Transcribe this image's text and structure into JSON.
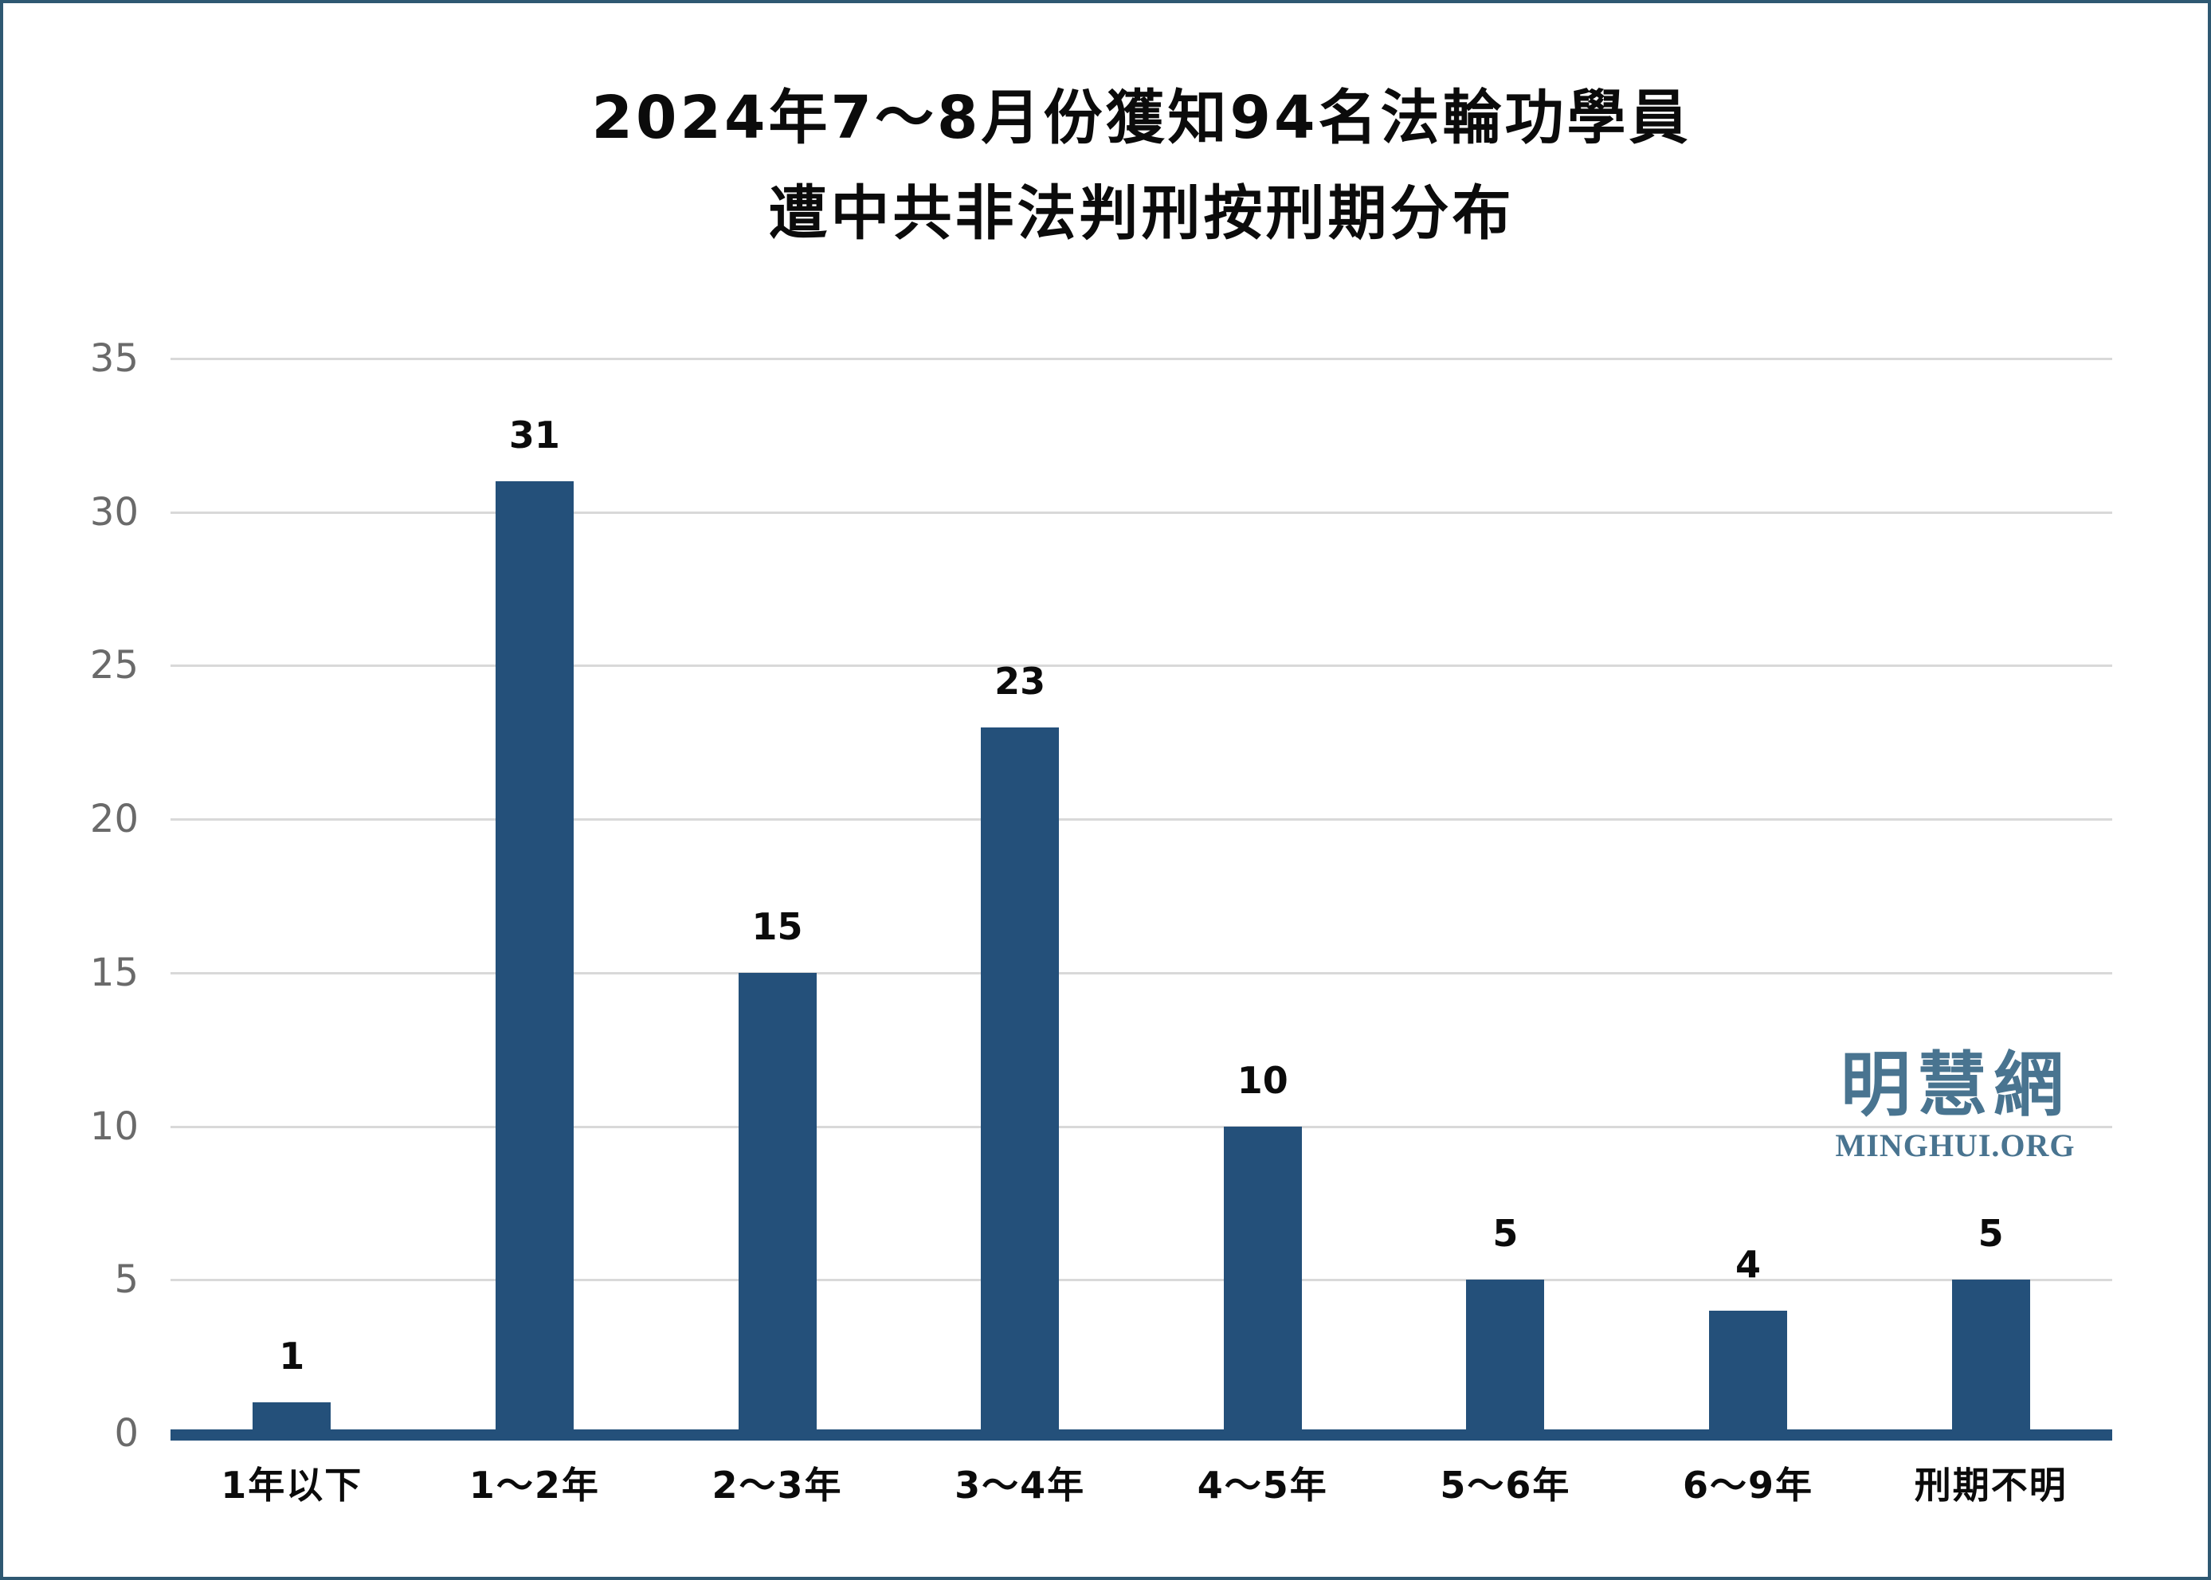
{
  "title": {
    "line1": "2024年7～8月份獲知94名法輪功學員",
    "line2": "遭中共非法判刑按刑期分布"
  },
  "watermark": {
    "cjk": "明慧網",
    "latin": "MINGHUI.ORG",
    "color": "#497490"
  },
  "chart_data": {
    "type": "bar",
    "title": "2024年7～8月份獲知94名法輪功學員遭中共非法判刑按刑期分布",
    "categories": [
      "1年以下",
      "1～2年",
      "2～3年",
      "3～4年",
      "4～5年",
      "5～6年",
      "6～9年",
      "刑期不明"
    ],
    "values": [
      1,
      31,
      15,
      23,
      10,
      5,
      4,
      5
    ],
    "xlabel": "",
    "ylabel": "",
    "ylim": [
      0,
      35
    ],
    "yticks": [
      0,
      5,
      10,
      15,
      20,
      25,
      30,
      35
    ],
    "grid": true,
    "legend": "none",
    "bar_color": "#24507a",
    "axis_line_color": "#24507a",
    "gridline_color": "#d9d9d9",
    "ytick_color": "#6a6a6a",
    "value_label_color": "#0b0b0b"
  }
}
